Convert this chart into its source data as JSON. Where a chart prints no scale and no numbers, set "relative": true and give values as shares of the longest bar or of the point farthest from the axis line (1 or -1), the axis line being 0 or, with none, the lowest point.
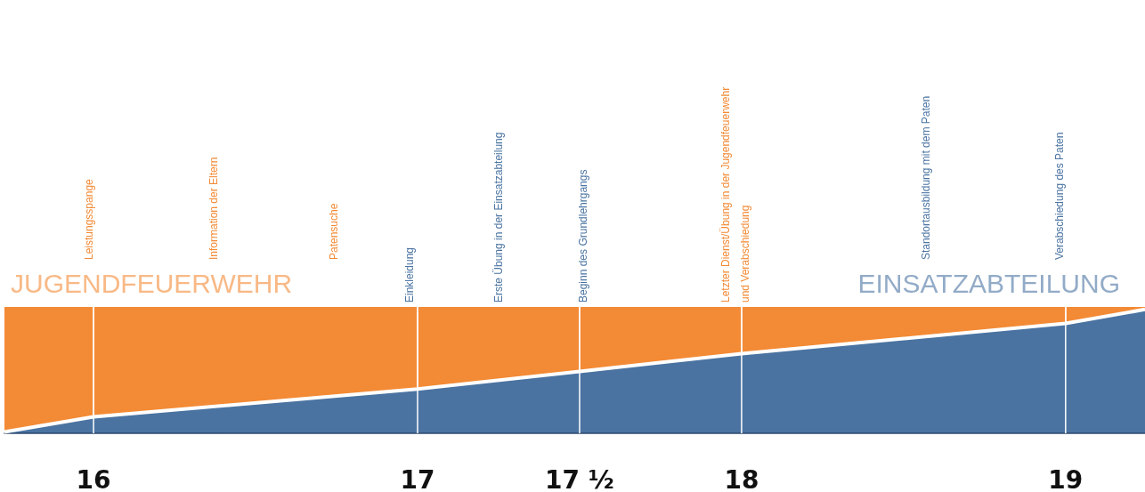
{
  "chart_data": {
    "type": "area",
    "stacked": true,
    "relative": true,
    "grid": "x",
    "legend": false,
    "x": [
      15.725,
      16,
      17,
      17.5,
      18,
      19,
      19.245
    ],
    "xlim": [
      15.725,
      19.245
    ],
    "xticks": [
      16,
      17,
      {
        "value": 17.5,
        "label": "17 ½"
      },
      18,
      19
    ],
    "series": [
      {
        "name": "EINSATZABTEILUNG",
        "color": "#4a73a1",
        "values": [
          0.01,
          0.13,
          0.35,
          0.49,
          0.63,
          0.87,
          0.98
        ]
      },
      {
        "name": "JUGENDFEUERWEHR",
        "color": "#f38a35",
        "values": [
          0.99,
          0.87,
          0.65,
          0.51,
          0.37,
          0.13,
          0.02
        ]
      }
    ],
    "annotations": [
      "Leistungsspange",
      "Information der Eltern",
      "Patensuche",
      "Einkleidung",
      "Erste Übung in der Einsatzabteilung",
      "Beginn des Grundlehrgangs",
      "Letzter Dienst/Übung in der Jugendfeuerwehr\nund Verabschiedung",
      "Standortausbildung mit dem Paten",
      "Verabschiedung des Paten"
    ]
  }
}
